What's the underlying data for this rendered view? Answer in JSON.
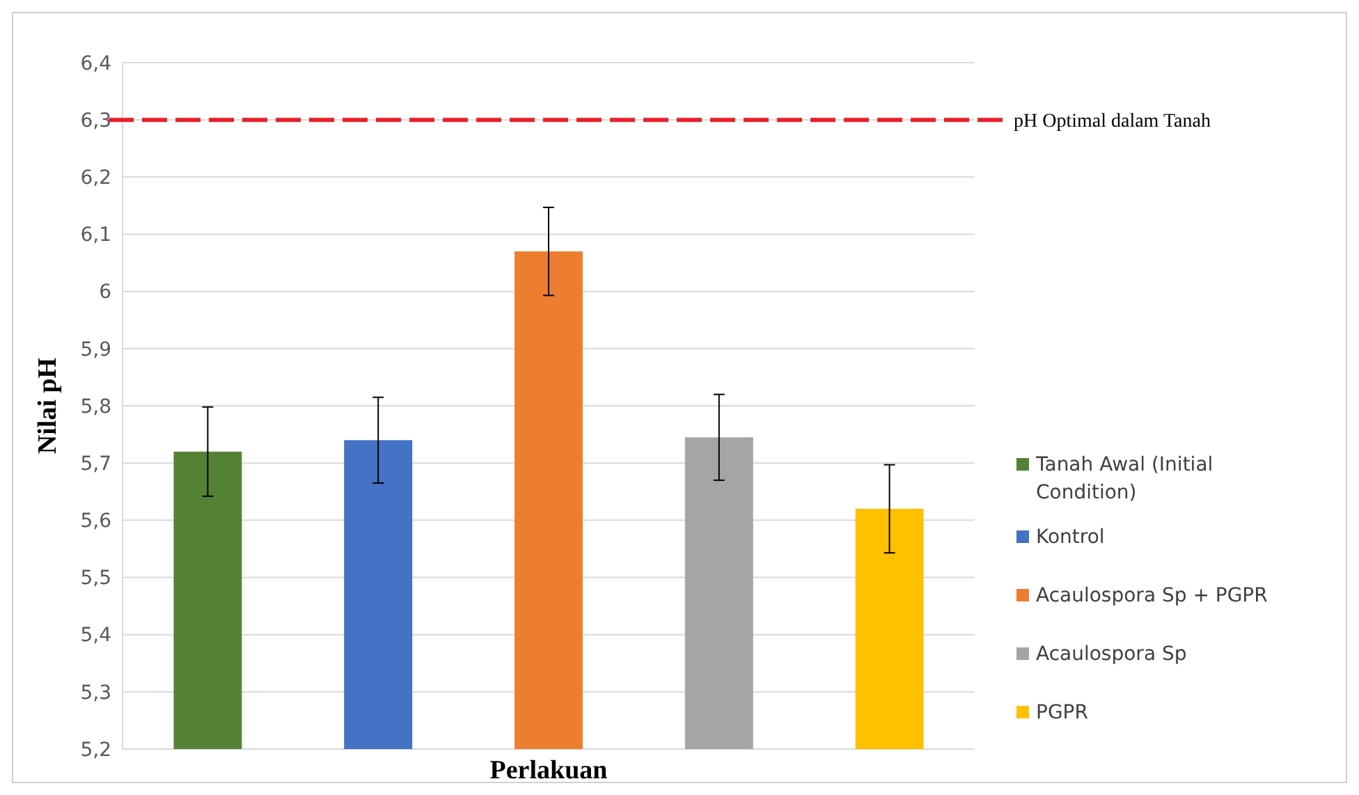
{
  "chart_data": {
    "type": "bar",
    "xlabel": "Perlakuan",
    "ylabel": "Nilai pH",
    "categories": [
      null
    ],
    "series": [
      {
        "name": "Tanah Awal (Initial Condition)",
        "color": "#548235",
        "values": [
          5.72
        ],
        "errors": [
          0.078
        ]
      },
      {
        "name": "Kontrol",
        "color": "#4472c4",
        "values": [
          5.74
        ],
        "errors": [
          0.075
        ]
      },
      {
        "name": "Acaulospora Sp + PGPR",
        "color": "#ed7d31",
        "values": [
          6.07
        ],
        "errors": [
          0.077
        ]
      },
      {
        "name": "Acaulospora Sp",
        "color": "#a5a5a5",
        "values": [
          5.745
        ],
        "errors": [
          0.075
        ]
      },
      {
        "name": "PGPR",
        "color": "#ffc000",
        "values": [
          5.62
        ],
        "errors": [
          0.077
        ]
      }
    ],
    "ylim": [
      5.2,
      6.4
    ],
    "yticks": [
      {
        "value": 5.2,
        "label": "5,2"
      },
      {
        "value": 5.3,
        "label": "5,3"
      },
      {
        "value": 5.4,
        "label": "5,4"
      },
      {
        "value": 5.5,
        "label": "5,5"
      },
      {
        "value": 5.6,
        "label": "5,6"
      },
      {
        "value": 5.7,
        "label": "5,7"
      },
      {
        "value": 5.8,
        "label": "5,8"
      },
      {
        "value": 5.9,
        "label": "5,9"
      },
      {
        "value": 6,
        "label": "6"
      },
      {
        "value": 6.1,
        "label": "6,1"
      },
      {
        "value": 6.2,
        "label": "6,2"
      },
      {
        "value": 6.3,
        "label": "6,3"
      },
      {
        "value": 6.4,
        "label": "6,4"
      }
    ],
    "grid": "y",
    "legend": "right",
    "ref_lines": [
      {
        "axis": "y",
        "value": 6.3,
        "label": "pH Optimal dalam Tanah",
        "color": "#e8202a",
        "line_style": "dashed"
      }
    ]
  }
}
